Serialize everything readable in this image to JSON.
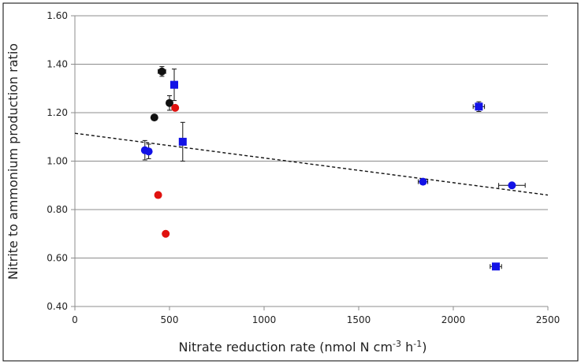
{
  "chart_data": {
    "type": "scatter",
    "title": "",
    "xlabel": "Nitrate reduction rate (nmol N cm",
    "xlabel_sup1": "-3",
    "xlabel_mid": " h",
    "xlabel_sup2": "-1",
    "xlabel_end": ")",
    "ylabel": "Nitrite to ammonium production ratio",
    "xlim": [
      0,
      2500
    ],
    "ylim": [
      0.4,
      1.6
    ],
    "x_ticks": [
      0,
      500,
      1000,
      1500,
      2000,
      2500
    ],
    "x_tick_labels": [
      "0",
      "500",
      "1000",
      "1500",
      "2000",
      "2500"
    ],
    "y_ticks": [
      0.4,
      0.6,
      0.8,
      1.0,
      1.2,
      1.4,
      1.6
    ],
    "y_tick_labels": [
      "0.40",
      "0.60",
      "0.80",
      "1.00",
      "1.20",
      "1.40",
      "1.60"
    ],
    "grid": "horizontal",
    "series": [
      {
        "name": "black circles",
        "color": "#111111",
        "marker": "circle",
        "points": [
          {
            "x": 460,
            "y": 1.37,
            "xerr": 20,
            "yerr": 0.02
          },
          {
            "x": 500,
            "y": 1.24,
            "xerr": 15,
            "yerr": 0.03
          },
          {
            "x": 420,
            "y": 1.18,
            "xerr": 0,
            "yerr": 0
          }
        ]
      },
      {
        "name": "red circles",
        "color": "#e0120f",
        "marker": "circle",
        "points": [
          {
            "x": 530,
            "y": 1.22,
            "xerr": 10,
            "yerr": 0.01
          },
          {
            "x": 440,
            "y": 0.86,
            "xerr": 0,
            "yerr": 0
          },
          {
            "x": 480,
            "y": 0.7,
            "xerr": 8,
            "yerr": 0
          }
        ]
      },
      {
        "name": "blue circles",
        "color": "#1212e6",
        "marker": "circle",
        "points": [
          {
            "x": 370,
            "y": 1.045,
            "xerr": 0,
            "yerr": 0.04
          },
          {
            "x": 390,
            "y": 1.04,
            "xerr": 0,
            "yerr": 0.03
          },
          {
            "x": 1840,
            "y": 0.915,
            "xerr": 25,
            "yerr": 0.01
          },
          {
            "x": 2310,
            "y": 0.9,
            "xerr": 70,
            "yerr": 0.01
          }
        ]
      },
      {
        "name": "blue squares",
        "color": "#1212e6",
        "marker": "square",
        "points": [
          {
            "x": 525,
            "y": 1.315,
            "xerr": 0,
            "yerr": 0.065
          },
          {
            "x": 570,
            "y": 1.08,
            "xerr": 0,
            "yerr": 0.08
          },
          {
            "x": 2135,
            "y": 1.225,
            "xerr": 30,
            "yerr": 0.02
          },
          {
            "x": 2225,
            "y": 0.565,
            "xerr": 30,
            "yerr": 0.01
          }
        ]
      }
    ],
    "trendline": {
      "style": "dashed",
      "color": "#111111",
      "x": [
        0,
        2500
      ],
      "y": [
        1.115,
        0.86
      ]
    }
  }
}
